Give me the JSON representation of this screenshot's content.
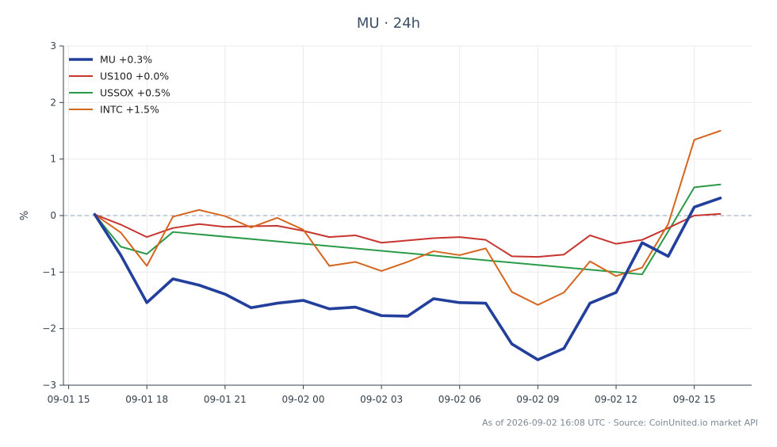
{
  "title": "MU · 24h",
  "footer": "As of 2026-09-02 16:08 UTC · Source: CoinUnited.io market API",
  "colors": {
    "MU": "#233f9c",
    "US100": "#c8342e",
    "USSOX": "#2a9a48",
    "INTC": "#d6651e",
    "zero_line": "#8fa1b3",
    "grid": "#ebebeb",
    "axis": "#34404f"
  },
  "chart_data": {
    "type": "line",
    "title": "MU · 24h",
    "xlabel": "",
    "ylabel": "%",
    "ylim": [
      -3,
      3
    ],
    "yticks": [
      -3,
      -2,
      -1,
      0,
      1,
      2,
      3
    ],
    "ytick_labels": [
      "−3",
      "−2",
      "−1",
      "0",
      "1",
      "2",
      "3"
    ],
    "xlim": [
      -0.2,
      26.2
    ],
    "xtick_positions": [
      0,
      3,
      6,
      9,
      12,
      15,
      18,
      21,
      24
    ],
    "xtick_labels": [
      "09-01 15",
      "09-01 18",
      "09-01 21",
      "09-02 00",
      "09-02 03",
      "09-02 06",
      "09-02 09",
      "09-02 12",
      "09-02 15"
    ],
    "grid": true,
    "legend_position": "top-left",
    "reference_line": 0,
    "series": [
      {
        "name": "MU +0.3%",
        "key": "MU",
        "x": [
          1,
          2,
          3,
          4,
          5,
          6,
          7,
          8,
          9,
          10,
          11,
          12,
          13,
          14,
          15,
          16,
          17,
          18,
          19,
          20,
          21,
          22,
          23,
          24,
          25
        ],
        "values": [
          0.02,
          -0.7,
          -1.54,
          -1.12,
          -1.23,
          -1.39,
          -1.63,
          -1.55,
          -1.5,
          -1.65,
          -1.62,
          -1.77,
          -1.78,
          -1.47,
          -1.54,
          -1.55,
          -2.27,
          -2.55,
          -2.35,
          -1.55,
          -1.36,
          -0.48,
          -0.72,
          0.15,
          0.31
        ]
      },
      {
        "name": "US100 +0.0%",
        "key": "US100",
        "x": [
          1,
          2,
          3,
          4,
          5,
          6,
          7,
          8,
          9,
          10,
          11,
          12,
          13,
          14,
          15,
          16,
          17,
          18,
          19,
          20,
          21,
          22,
          23,
          24,
          25
        ],
        "values": [
          0.02,
          -0.16,
          -0.38,
          -0.22,
          -0.15,
          -0.2,
          -0.19,
          -0.18,
          -0.27,
          -0.38,
          -0.35,
          -0.48,
          -0.44,
          -0.4,
          -0.38,
          -0.43,
          -0.72,
          -0.73,
          -0.69,
          -0.35,
          -0.5,
          -0.43,
          -0.22,
          0.0,
          0.03
        ]
      },
      {
        "name": "USSOX +0.5%",
        "key": "USSOX",
        "x": [
          1,
          2,
          3,
          4,
          22,
          23,
          24,
          25
        ],
        "values": [
          0.02,
          -0.55,
          -0.68,
          -0.29,
          -1.04,
          -0.28,
          0.5,
          0.55
        ]
      },
      {
        "name": "INTC +1.5%",
        "key": "INTC",
        "x": [
          1,
          2,
          3,
          4,
          5,
          6,
          7,
          8,
          9,
          10,
          11,
          12,
          13,
          14,
          15,
          16,
          17,
          18,
          19,
          20,
          21,
          22,
          23,
          24,
          25
        ],
        "values": [
          0.02,
          -0.3,
          -0.89,
          -0.02,
          0.1,
          -0.01,
          -0.21,
          -0.04,
          -0.25,
          -0.89,
          -0.82,
          -0.98,
          -0.82,
          -0.63,
          -0.7,
          -0.58,
          -1.35,
          -1.58,
          -1.36,
          -0.81,
          -1.07,
          -0.92,
          -0.15,
          1.34,
          1.5
        ]
      }
    ]
  }
}
